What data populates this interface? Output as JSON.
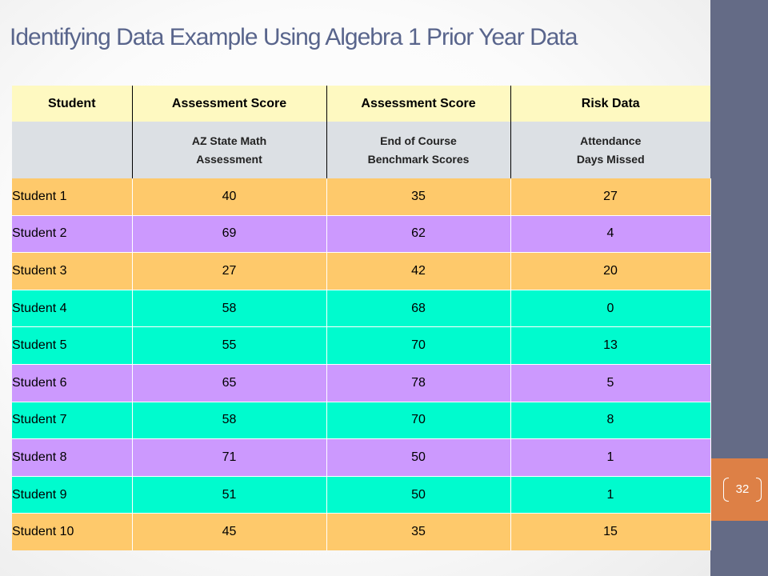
{
  "title": "Identifying Data Example Using Algebra 1 Prior Year Data",
  "page_number": "32",
  "colors": {
    "sidebar": "#646b86",
    "accent": "#dd8046",
    "title": "#59658c",
    "orange_row": "#fec96b",
    "purple_row": "#cc99fe",
    "teal_row": "#00fbce"
  },
  "table": {
    "headers": [
      "Student",
      "Assessment Score",
      "Assessment Score",
      "Risk Data"
    ],
    "subheaders": [
      {
        "line1": "",
        "line2": ""
      },
      {
        "line1": "AZ State Math",
        "line2": "Assessment"
      },
      {
        "line1": "End of Course",
        "line2": "Benchmark Scores"
      },
      {
        "line1": "Attendance",
        "line2": "Days Missed"
      }
    ],
    "rows": [
      {
        "student": "Student 1",
        "az": "40",
        "eoc": "35",
        "missed": "27",
        "color": "orange"
      },
      {
        "student": "Student 2",
        "az": "69",
        "eoc": "62",
        "missed": "4",
        "color": "purple"
      },
      {
        "student": "Student 3",
        "az": "27",
        "eoc": "42",
        "missed": "20",
        "color": "orange"
      },
      {
        "student": "Student 4",
        "az": "58",
        "eoc": "68",
        "missed": "0",
        "color": "teal"
      },
      {
        "student": "Student 5",
        "az": "55",
        "eoc": "70",
        "missed": "13",
        "color": "teal"
      },
      {
        "student": "Student 6",
        "az": "65",
        "eoc": "78",
        "missed": "5",
        "color": "purple"
      },
      {
        "student": "Student 7",
        "az": "58",
        "eoc": "70",
        "missed": "8",
        "color": "teal"
      },
      {
        "student": "Student 8",
        "az": "71",
        "eoc": "50",
        "missed": "1",
        "color": "purple"
      },
      {
        "student": "Student 9",
        "az": "51",
        "eoc": "50",
        "missed": "1",
        "color": "teal"
      },
      {
        "student": "Student 10",
        "az": "45",
        "eoc": "35",
        "missed": "15",
        "color": "orange"
      }
    ]
  }
}
